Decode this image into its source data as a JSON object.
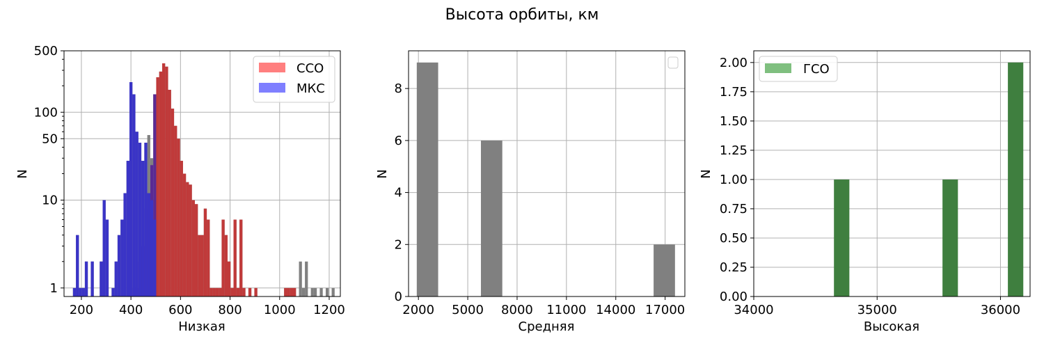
{
  "figure": {
    "suptitle": "Высота орбиты, км"
  },
  "colors": {
    "gray": "#808080",
    "red": "#c03a3a",
    "blue": "#3a34c6",
    "purple": "#5a2a93",
    "green": "#3f7f3f",
    "legend_red": "#ff7f7f",
    "legend_blue": "#7f7fff",
    "legend_green": "#7fbf7f",
    "grid": "#b0b0b0"
  },
  "chart_data": [
    {
      "type": "bar",
      "title": "",
      "xlabel": "Низкая",
      "ylabel": "N",
      "yscale": "log",
      "xlim": [
        130,
        1245
      ],
      "ylim": [
        0.8,
        500
      ],
      "xticks": [
        200,
        400,
        600,
        800,
        1000,
        1200
      ],
      "yticks": [
        1,
        10,
        50,
        100,
        500
      ],
      "grid": true,
      "legend": "top-right",
      "bin_width": 12,
      "series": [
        {
          "name": "",
          "color_key": "gray",
          "bins": [
            [
              166,
              1
            ],
            [
              178,
              4
            ],
            [
              190,
              1
            ],
            [
              202,
              1
            ],
            [
              214,
              2
            ],
            [
              238,
              2
            ],
            [
              274,
              2
            ],
            [
              286,
              10
            ],
            [
              298,
              6
            ],
            [
              322,
              1
            ],
            [
              334,
              2
            ],
            [
              346,
              4
            ],
            [
              358,
              6
            ],
            [
              370,
              12
            ],
            [
              382,
              28
            ],
            [
              394,
              220
            ],
            [
              406,
              160
            ],
            [
              418,
              60
            ],
            [
              430,
              45
            ],
            [
              442,
              28
            ],
            [
              454,
              45
            ],
            [
              466,
              55
            ],
            [
              478,
              30
            ],
            [
              490,
              160
            ],
            [
              502,
              250
            ],
            [
              514,
              290
            ],
            [
              526,
              360
            ],
            [
              538,
              330
            ],
            [
              550,
              180
            ],
            [
              562,
              110
            ],
            [
              574,
              70
            ],
            [
              586,
              50
            ],
            [
              598,
              28
            ],
            [
              610,
              20
            ],
            [
              622,
              16
            ],
            [
              634,
              15
            ],
            [
              646,
              10
            ],
            [
              658,
              9
            ],
            [
              670,
              4
            ],
            [
              682,
              4
            ],
            [
              694,
              8
            ],
            [
              706,
              6
            ],
            [
              718,
              1
            ],
            [
              730,
              1
            ],
            [
              742,
              1
            ],
            [
              754,
              1
            ],
            [
              766,
              6
            ],
            [
              778,
              4
            ],
            [
              790,
              2
            ],
            [
              802,
              1
            ],
            [
              814,
              6
            ],
            [
              826,
              1
            ],
            [
              838,
              6
            ],
            [
              850,
              1
            ],
            [
              874,
              1
            ],
            [
              898,
              1
            ],
            [
              1018,
              1
            ],
            [
              1030,
              1
            ],
            [
              1042,
              1
            ],
            [
              1054,
              1
            ],
            [
              1078,
              2
            ],
            [
              1090,
              1
            ],
            [
              1102,
              2
            ],
            [
              1126,
              1
            ],
            [
              1138,
              1
            ],
            [
              1162,
              1
            ],
            [
              1186,
              1
            ],
            [
              1210,
              1
            ]
          ]
        },
        {
          "name": "ССО",
          "color_key": "red",
          "bins": [
            [
              406,
              1
            ],
            [
              418,
              1
            ],
            [
              430,
              2
            ],
            [
              442,
              3
            ],
            [
              454,
              8
            ],
            [
              466,
              12
            ],
            [
              478,
              25
            ],
            [
              490,
              160
            ],
            [
              502,
              250
            ],
            [
              514,
              290
            ],
            [
              526,
              360
            ],
            [
              538,
              330
            ],
            [
              550,
              180
            ],
            [
              562,
              110
            ],
            [
              574,
              70
            ],
            [
              586,
              50
            ],
            [
              598,
              28
            ],
            [
              610,
              20
            ],
            [
              622,
              16
            ],
            [
              634,
              15
            ],
            [
              646,
              10
            ],
            [
              658,
              9
            ],
            [
              670,
              4
            ],
            [
              682,
              4
            ],
            [
              694,
              8
            ],
            [
              706,
              6
            ],
            [
              718,
              1
            ],
            [
              730,
              1
            ],
            [
              742,
              1
            ],
            [
              754,
              1
            ],
            [
              766,
              6
            ],
            [
              778,
              4
            ],
            [
              790,
              2
            ],
            [
              802,
              1
            ],
            [
              814,
              6
            ],
            [
              826,
              1
            ],
            [
              838,
              6
            ],
            [
              850,
              1
            ],
            [
              874,
              1
            ],
            [
              898,
              1
            ],
            [
              1018,
              1
            ],
            [
              1030,
              1
            ],
            [
              1042,
              1
            ],
            [
              1054,
              1
            ]
          ]
        },
        {
          "name": "МКС",
          "color_key": "blue",
          "bins": [
            [
              166,
              1
            ],
            [
              178,
              4
            ],
            [
              190,
              1
            ],
            [
              202,
              1
            ],
            [
              214,
              2
            ],
            [
              238,
              2
            ],
            [
              274,
              2
            ],
            [
              286,
              10
            ],
            [
              298,
              6
            ],
            [
              322,
              1
            ],
            [
              334,
              2
            ],
            [
              346,
              4
            ],
            [
              358,
              6
            ],
            [
              370,
              12
            ],
            [
              382,
              28
            ],
            [
              394,
              220
            ],
            [
              406,
              160
            ],
            [
              418,
              60
            ],
            [
              430,
              45
            ],
            [
              442,
              28
            ],
            [
              454,
              45
            ],
            [
              466,
              12
            ],
            [
              478,
              10
            ],
            [
              490,
              6
            ]
          ]
        }
      ]
    },
    {
      "type": "bar",
      "title": "",
      "xlabel": "Средняя",
      "ylabel": "N",
      "xlim": [
        1400,
        18200
      ],
      "ylim": [
        0,
        9.45
      ],
      "xticks": [
        2000,
        5000,
        8000,
        11000,
        14000,
        17000
      ],
      "yticks": [
        0,
        2,
        4,
        6,
        8
      ],
      "grid": true,
      "legend": "top-right (empty)",
      "bins": [
        {
          "x0": 1900,
          "x1": 3200,
          "value": 9
        },
        {
          "x0": 5800,
          "x1": 7100,
          "value": 6
        },
        {
          "x0": 16300,
          "x1": 17600,
          "value": 2
        }
      ]
    },
    {
      "type": "bar",
      "title": "",
      "xlabel": "Высокая",
      "ylabel": "N",
      "xlim": [
        34000,
        36240
      ],
      "ylim": [
        0,
        2.1
      ],
      "xticks": [
        34000,
        35000,
        36000
      ],
      "yticks": [
        0.0,
        0.25,
        0.5,
        0.75,
        1.0,
        1.25,
        1.5,
        1.75,
        2.0
      ],
      "grid": true,
      "legend": "top-left",
      "series": [
        {
          "name": "ГСО",
          "color_key": "green"
        }
      ],
      "bins": [
        {
          "x0": 34650,
          "x1": 34775,
          "value": 1
        },
        {
          "x0": 35530,
          "x1": 35655,
          "value": 1
        },
        {
          "x0": 36060,
          "x1": 36185,
          "value": 2
        }
      ]
    }
  ]
}
